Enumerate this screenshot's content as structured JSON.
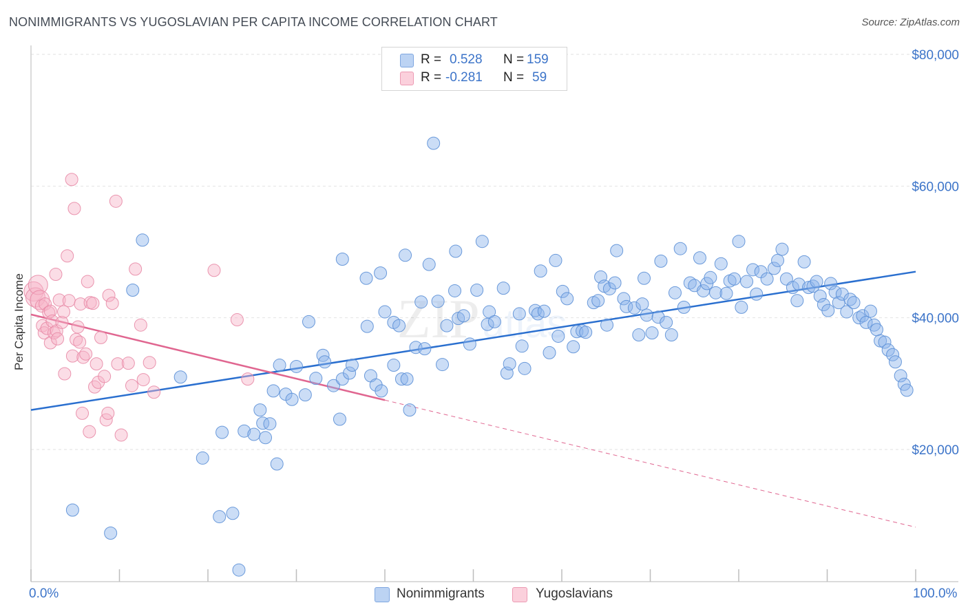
{
  "chart_data": {
    "type": "scatter",
    "title": "NONIMMIGRANTS VS YUGOSLAVIAN PER CAPITA INCOME CORRELATION CHART",
    "source": "Source: ZipAtlas.com",
    "ylabel": "Per Capita Income",
    "xlim": [
      0,
      100
    ],
    "ylim": [
      0,
      82000
    ],
    "x_tick_labels": [
      "0.0%",
      "100.0%"
    ],
    "y_ticks": [
      {
        "value": 20000,
        "label": "$20,000"
      },
      {
        "value": 40000,
        "label": "$40,000"
      },
      {
        "value": 60000,
        "label": "$60,000"
      },
      {
        "value": 80000,
        "label": "$80,000"
      }
    ],
    "watermark": "ZIPatlas",
    "series": [
      {
        "name": "Nonimmigrants",
        "color": "#8bb4ea",
        "edge": "#5b8fd6",
        "line_color": "#2a6fcf",
        "R": "0.528",
        "N": "159",
        "trend": {
          "x0": 0,
          "y0": 26000,
          "x1": 100,
          "y1": 47000
        },
        "points": [
          [
            4.7,
            10.8
          ],
          [
            9.0,
            7.3
          ],
          [
            11.5,
            44.2
          ],
          [
            12.6,
            51.8
          ],
          [
            16.9,
            31.0
          ],
          [
            19.4,
            18.7
          ],
          [
            21.3,
            9.8
          ],
          [
            21.6,
            22.6
          ],
          [
            22.8,
            10.3
          ],
          [
            23.5,
            1.7
          ],
          [
            24.1,
            22.8
          ],
          [
            25.2,
            22.3
          ],
          [
            25.9,
            26.0
          ],
          [
            26.2,
            24.0
          ],
          [
            26.5,
            21.8
          ],
          [
            27.0,
            23.9
          ],
          [
            27.4,
            28.9
          ],
          [
            27.8,
            17.8
          ],
          [
            28.1,
            32.8
          ],
          [
            28.8,
            28.4
          ],
          [
            29.5,
            27.6
          ],
          [
            30.0,
            32.6
          ],
          [
            31.0,
            28.3
          ],
          [
            31.4,
            39.4
          ],
          [
            32.2,
            30.8
          ],
          [
            33.0,
            34.3
          ],
          [
            33.2,
            33.3
          ],
          [
            34.2,
            29.7
          ],
          [
            34.9,
            24.6
          ],
          [
            35.2,
            30.7
          ],
          [
            35.2,
            48.9
          ],
          [
            36.0,
            31.6
          ],
          [
            36.3,
            32.8
          ],
          [
            37.9,
            46.0
          ],
          [
            38.0,
            38.7
          ],
          [
            38.4,
            31.2
          ],
          [
            39.0,
            29.8
          ],
          [
            39.5,
            46.8
          ],
          [
            39.6,
            28.9
          ],
          [
            40.0,
            40.9
          ],
          [
            41.0,
            32.8
          ],
          [
            41.0,
            39.3
          ],
          [
            41.6,
            38.8
          ],
          [
            41.9,
            30.7
          ],
          [
            42.3,
            49.5
          ],
          [
            42.5,
            30.7
          ],
          [
            42.8,
            26.0
          ],
          [
            43.5,
            35.5
          ],
          [
            44.1,
            42.4
          ],
          [
            44.5,
            35.3
          ],
          [
            45.0,
            48.1
          ],
          [
            45.5,
            66.5
          ],
          [
            46.0,
            42.5
          ],
          [
            46.5,
            32.9
          ],
          [
            47.0,
            38.8
          ],
          [
            47.9,
            44.1
          ],
          [
            48.0,
            50.1
          ],
          [
            48.3,
            39.9
          ],
          [
            48.9,
            40.3
          ],
          [
            49.6,
            36.0
          ],
          [
            50.4,
            44.2
          ],
          [
            51.0,
            51.6
          ],
          [
            51.6,
            39.0
          ],
          [
            51.8,
            40.9
          ],
          [
            52.4,
            39.4
          ],
          [
            53.4,
            44.5
          ],
          [
            53.8,
            31.6
          ],
          [
            54.1,
            33.0
          ],
          [
            55.2,
            40.6
          ],
          [
            55.5,
            35.7
          ],
          [
            55.8,
            32.3
          ],
          [
            57.0,
            41.1
          ],
          [
            57.3,
            40.6
          ],
          [
            57.6,
            47.1
          ],
          [
            58.0,
            41.0
          ],
          [
            58.6,
            34.7
          ],
          [
            59.3,
            48.7
          ],
          [
            59.6,
            37.2
          ],
          [
            60.1,
            44.0
          ],
          [
            60.6,
            42.9
          ],
          [
            61.3,
            35.6
          ],
          [
            61.7,
            37.9
          ],
          [
            62.3,
            38.0
          ],
          [
            62.7,
            37.8
          ],
          [
            63.6,
            42.3
          ],
          [
            64.1,
            42.6
          ],
          [
            64.4,
            46.2
          ],
          [
            64.8,
            44.8
          ],
          [
            65.4,
            44.4
          ],
          [
            66.0,
            45.3
          ],
          [
            65.1,
            38.9
          ],
          [
            66.2,
            50.2
          ],
          [
            67.0,
            42.9
          ],
          [
            67.3,
            41.7
          ],
          [
            68.2,
            41.5
          ],
          [
            68.7,
            37.4
          ],
          [
            69.1,
            42.1
          ],
          [
            69.3,
            46.0
          ],
          [
            69.6,
            40.4
          ],
          [
            70.2,
            37.7
          ],
          [
            70.9,
            40.1
          ],
          [
            71.2,
            48.6
          ],
          [
            71.8,
            39.3
          ],
          [
            72.4,
            37.4
          ],
          [
            72.8,
            43.8
          ],
          [
            73.4,
            50.5
          ],
          [
            73.8,
            41.6
          ],
          [
            74.5,
            45.3
          ],
          [
            75.0,
            44.9
          ],
          [
            75.6,
            49.1
          ],
          [
            76.0,
            44.1
          ],
          [
            76.4,
            45.2
          ],
          [
            76.8,
            46.1
          ],
          [
            77.4,
            43.8
          ],
          [
            78.0,
            48.2
          ],
          [
            78.6,
            43.7
          ],
          [
            79.0,
            45.6
          ],
          [
            79.5,
            45.9
          ],
          [
            80.0,
            51.6
          ],
          [
            80.3,
            41.6
          ],
          [
            80.9,
            45.5
          ],
          [
            81.6,
            47.3
          ],
          [
            82.0,
            43.6
          ],
          [
            82.5,
            47.0
          ],
          [
            83.2,
            45.9
          ],
          [
            84.0,
            47.5
          ],
          [
            84.4,
            48.7
          ],
          [
            84.9,
            50.4
          ],
          [
            85.4,
            45.9
          ],
          [
            86.1,
            44.6
          ],
          [
            86.6,
            42.6
          ],
          [
            86.8,
            45.1
          ],
          [
            87.4,
            48.5
          ],
          [
            87.9,
            44.6
          ],
          [
            88.4,
            44.8
          ],
          [
            88.8,
            45.5
          ],
          [
            89.2,
            43.3
          ],
          [
            89.6,
            42.0
          ],
          [
            90.1,
            41.1
          ],
          [
            90.4,
            45.2
          ],
          [
            90.9,
            43.9
          ],
          [
            91.3,
            42.3
          ],
          [
            91.7,
            43.6
          ],
          [
            92.2,
            40.9
          ],
          [
            92.6,
            42.8
          ],
          [
            93.0,
            42.3
          ],
          [
            93.6,
            40.0
          ],
          [
            94.0,
            40.3
          ],
          [
            94.4,
            39.3
          ],
          [
            94.9,
            41.0
          ],
          [
            95.3,
            38.9
          ],
          [
            95.6,
            38.2
          ],
          [
            96.0,
            36.5
          ],
          [
            96.5,
            36.3
          ],
          [
            96.9,
            35.1
          ],
          [
            97.4,
            34.4
          ],
          [
            97.7,
            33.3
          ],
          [
            98.3,
            31.2
          ],
          [
            98.7,
            29.9
          ],
          [
            99.0,
            29.0
          ]
        ]
      },
      {
        "name": "Yugoslavians",
        "color": "#f6b4c8",
        "edge": "#e88aa6",
        "line_color": "#e06690",
        "R": "-0.281",
        "N": "59",
        "trend": {
          "x0": 0,
          "y0": 40500,
          "x1": 40,
          "y1": 27500
        },
        "trend_dash": {
          "x0": 40,
          "y0": 27500,
          "x1": 100,
          "y1": 8200
        },
        "points": [
          [
            0.3,
            44.0
          ],
          [
            0.5,
            43.1
          ],
          [
            0.8,
            45.0
          ],
          [
            1.0,
            42.7
          ],
          [
            1.2,
            41.8
          ],
          [
            1.3,
            38.8
          ],
          [
            1.5,
            37.7
          ],
          [
            1.6,
            42.1
          ],
          [
            1.8,
            38.4
          ],
          [
            2.0,
            40.8
          ],
          [
            2.2,
            41.0
          ],
          [
            2.2,
            36.2
          ],
          [
            2.4,
            39.5
          ],
          [
            2.6,
            37.7
          ],
          [
            2.8,
            46.6
          ],
          [
            2.9,
            38.0
          ],
          [
            3.0,
            36.8
          ],
          [
            3.2,
            42.7
          ],
          [
            3.5,
            39.3
          ],
          [
            3.7,
            40.9
          ],
          [
            3.8,
            31.5
          ],
          [
            4.1,
            49.4
          ],
          [
            4.3,
            42.6
          ],
          [
            4.6,
            61.0
          ],
          [
            4.7,
            34.2
          ],
          [
            4.9,
            56.6
          ],
          [
            5.1,
            36.7
          ],
          [
            5.3,
            38.6
          ],
          [
            5.5,
            36.3
          ],
          [
            5.6,
            42.1
          ],
          [
            5.8,
            25.5
          ],
          [
            5.9,
            34.0
          ],
          [
            6.2,
            34.5
          ],
          [
            6.4,
            45.5
          ],
          [
            6.6,
            22.7
          ],
          [
            6.7,
            42.3
          ],
          [
            7.0,
            42.2
          ],
          [
            7.2,
            29.5
          ],
          [
            7.4,
            33.0
          ],
          [
            7.6,
            30.2
          ],
          [
            7.9,
            37.0
          ],
          [
            8.3,
            31.1
          ],
          [
            8.5,
            24.5
          ],
          [
            8.7,
            25.5
          ],
          [
            8.8,
            43.4
          ],
          [
            9.2,
            42.2
          ],
          [
            9.6,
            57.7
          ],
          [
            9.8,
            33.0
          ],
          [
            10.2,
            22.2
          ],
          [
            11.0,
            33.1
          ],
          [
            11.4,
            29.7
          ],
          [
            11.8,
            47.4
          ],
          [
            12.4,
            38.9
          ],
          [
            12.7,
            30.6
          ],
          [
            13.4,
            33.2
          ],
          [
            13.9,
            28.7
          ],
          [
            20.7,
            47.2
          ],
          [
            23.3,
            39.7
          ],
          [
            24.5,
            30.7
          ]
        ]
      }
    ]
  },
  "legend": {
    "r_label": "R =",
    "n_label": "N ="
  }
}
